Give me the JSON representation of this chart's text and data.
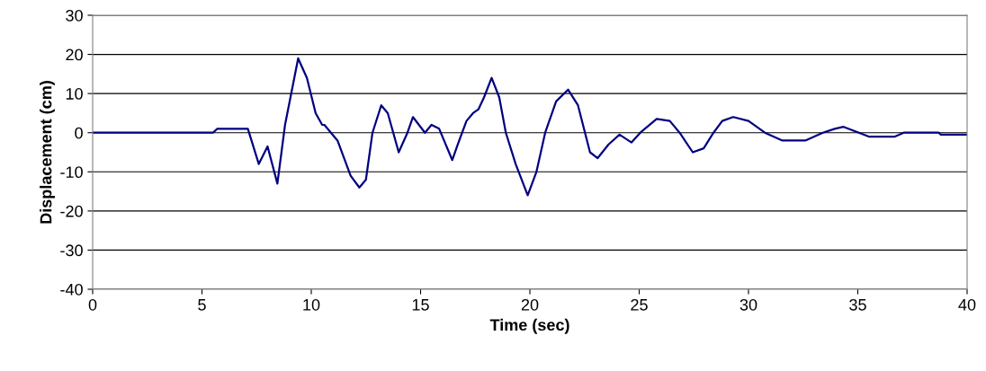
{
  "chart_data": {
    "type": "line",
    "xlabel": "Time (sec)",
    "ylabel": "Displacement (cm)",
    "xlim": [
      0,
      40
    ],
    "xticks": [
      0,
      5,
      10,
      15,
      20,
      25,
      30,
      35,
      40
    ],
    "ylim": [
      -40,
      30
    ],
    "yticks": [
      -40,
      -30,
      -20,
      -10,
      0,
      10,
      20,
      30
    ],
    "grid": "y",
    "marker": "none",
    "line_style": "solid",
    "series": [
      {
        "color": "#000080",
        "x": [
          0,
          5.5,
          5.7,
          7.1,
          7.6,
          8.0,
          8.45,
          8.8,
          9.4,
          9.8,
          10.2,
          10.5,
          10.6,
          10.9,
          11.2,
          11.8,
          12.2,
          12.5,
          12.8,
          13.2,
          13.5,
          14.0,
          14.4,
          14.65,
          15.2,
          15.5,
          15.85,
          16.45,
          16.7,
          17.1,
          17.4,
          17.65,
          17.9,
          18.25,
          18.6,
          18.9,
          19.35,
          19.9,
          20.3,
          20.7,
          21.2,
          21.75,
          22.2,
          22.75,
          23.1,
          23.6,
          24.1,
          24.65,
          25.05,
          25.8,
          26.4,
          26.85,
          27.45,
          27.95,
          28.4,
          28.8,
          29.3,
          30.0,
          30.75,
          31.55,
          32.6,
          33.4,
          33.95,
          34.35,
          35.05,
          35.5,
          36.7,
          37.1,
          38.7,
          38.8,
          40
        ],
        "values": [
          0,
          0,
          1,
          1,
          -8,
          -3.5,
          -13,
          2,
          19,
          14,
          5,
          2,
          2,
          0,
          -2,
          -11,
          -14,
          -12,
          0,
          7,
          5,
          -5,
          0,
          4,
          0,
          2,
          1,
          -7,
          -3,
          3,
          5,
          6,
          9,
          14,
          9,
          0,
          -8,
          -16,
          -10,
          0,
          8,
          11,
          7,
          -5,
          -6.5,
          -3,
          -0.5,
          -2.5,
          0,
          3.5,
          3,
          0,
          -5,
          -4,
          0,
          3,
          4,
          3,
          0,
          -2,
          -2,
          0,
          1,
          1.5,
          0,
          -1,
          -1,
          0,
          0,
          -0.5,
          -0.5
        ]
      }
    ]
  }
}
